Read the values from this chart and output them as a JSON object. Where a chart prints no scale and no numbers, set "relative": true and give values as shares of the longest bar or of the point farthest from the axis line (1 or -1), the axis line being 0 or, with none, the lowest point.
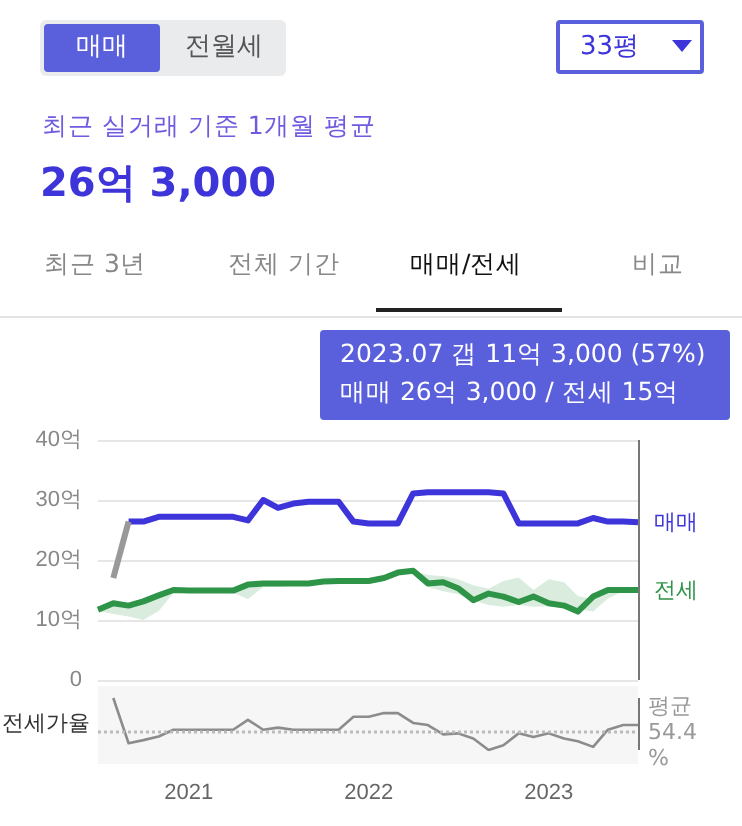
{
  "chart_data": [
    {
      "type": "line",
      "title": "최근 실거래 기준 1개월 평균",
      "subtitle": "26억 3,000",
      "annotations": [
        "매매",
        "전월세",
        "33평",
        "최근 3년",
        "전체 기간",
        "매매/전세",
        "비교",
        "2023.07  갭 11억 3,000 (57%)",
        "매매 26억 3,000 / 전세 15억"
      ],
      "x": [
        "2020-07",
        "2020-08",
        "2020-09",
        "2020-10",
        "2020-11",
        "2020-12",
        "2021-01",
        "2021-02",
        "2021-03",
        "2021-04",
        "2021-05",
        "2021-06",
        "2021-07",
        "2021-08",
        "2021-09",
        "2021-10",
        "2021-11",
        "2021-12",
        "2022-01",
        "2022-02",
        "2022-03",
        "2022-04",
        "2022-05",
        "2022-06",
        "2022-07",
        "2022-08",
        "2022-09",
        "2022-10",
        "2022-11",
        "2022-12",
        "2023-01",
        "2023-02",
        "2023-03",
        "2023-04",
        "2023-05",
        "2023-06",
        "2023-07"
      ],
      "xlim": [
        "2020-07",
        "2023-07"
      ],
      "ylim": [
        0,
        40
      ],
      "yticks": [
        0,
        {
          "value": 10,
          "label": "10억"
        },
        {
          "value": 20,
          "label": "20억"
        },
        {
          "value": 30,
          "label": "30억"
        },
        {
          "value": 40,
          "label": "40억"
        }
      ],
      "grid": "y",
      "tick_labels": "y",
      "series": [
        {
          "name": "매매",
          "color": "#3d35d9",
          "values": [
            null,
            null,
            26.4,
            26.4,
            27.2,
            27.2,
            27.2,
            27.2,
            27.2,
            27.2,
            26.6,
            30,
            28.7,
            29.4,
            29.7,
            29.7,
            29.7,
            26.4,
            26.1,
            26.1,
            26.1,
            31.1,
            31.3,
            31.3,
            31.3,
            31.3,
            31.3,
            31.1,
            26.1,
            26.1,
            26.1,
            26.1,
            26.1,
            27,
            26.4,
            26.4,
            26.3
          ]
        },
        {
          "color": "#999999",
          "values": [
            null,
            17,
            26.4,
            null,
            null,
            null,
            null,
            null,
            null,
            null,
            null,
            null,
            null,
            null,
            null,
            null,
            null,
            null,
            null,
            null,
            null,
            null,
            null,
            null,
            null,
            null,
            null,
            null,
            null,
            null,
            null,
            null,
            null,
            null,
            null,
            null,
            null
          ]
        },
        {
          "name": "전세",
          "color": "#2e9448",
          "values": [
            11.7,
            12.8,
            12.4,
            13.1,
            14.1,
            15,
            14.9,
            14.9,
            14.9,
            14.9,
            15.9,
            16.1,
            16.1,
            16.1,
            16.1,
            16.4,
            16.5,
            16.5,
            16.5,
            17,
            17.9,
            18.2,
            16.1,
            16.3,
            15.3,
            13.3,
            14.4,
            13.9,
            13,
            13.9,
            12.8,
            12.4,
            11.4,
            13.9,
            15,
            15,
            15
          ],
          "lower": [
            11.5,
            11,
            10.6,
            10,
            11.5,
            14.5,
            14.5,
            14.5,
            14.5,
            14.5,
            13.5,
            15.5,
            15.5,
            15.8,
            16,
            16.2,
            16.3,
            16.3,
            16.4,
            16.8,
            17.5,
            17.8,
            15.5,
            14.8,
            14.3,
            13.3,
            12.5,
            12.2,
            12.5,
            12.2,
            12.3,
            12.1,
            11.8,
            11.4,
            13.6,
            14.8,
            15
          ],
          "upper": [
            11.7,
            12.8,
            12.6,
            13.1,
            14.1,
            15,
            14.9,
            14.9,
            14.9,
            14.9,
            16.2,
            16.1,
            16.1,
            16.1,
            16.1,
            16.4,
            16.5,
            16.5,
            16.5,
            17,
            17.9,
            18.2,
            17.5,
            17.3,
            16.8,
            15.8,
            15.2,
            16.5,
            17.1,
            15,
            16.8,
            16.3,
            14,
            13.4,
            14.6,
            15.2,
            15
          ]
        }
      ],
      "ref_lines": [
        {
          "axis": "x",
          "value": "2023-07",
          "color": "#777777"
        }
      ]
    },
    {
      "type": "line",
      "ylabel": "전세가율",
      "relative": true,
      "x": [
        "2020-08",
        "2020-09",
        "2020-10",
        "2020-11",
        "2020-12",
        "2021-01",
        "2021-02",
        "2021-03",
        "2021-04",
        "2021-05",
        "2021-06",
        "2021-07",
        "2021-08",
        "2021-09",
        "2021-10",
        "2021-11",
        "2021-12",
        "2022-01",
        "2022-02",
        "2022-03",
        "2022-04",
        "2022-05",
        "2022-06",
        "2022-07",
        "2022-08",
        "2022-09",
        "2022-10",
        "2022-11",
        "2022-12",
        "2023-01",
        "2023-02",
        "2023-03",
        "2023-04",
        "2023-05",
        "2023-06",
        "2023-07"
      ],
      "xlim": [
        "2020-07",
        "2023-07"
      ],
      "xticks": [
        {
          "value": "2021-01",
          "label": "2021"
        },
        {
          "value": "2022-01",
          "label": "2022"
        },
        {
          "value": "2023-01",
          "label": "2023"
        }
      ],
      "tick_labels": "x",
      "series": [
        {
          "color": "#8c8c8c",
          "values": [
            1,
            0.13,
            0.19,
            0.26,
            0.39,
            0.39,
            0.39,
            0.39,
            0.39,
            0.58,
            0.39,
            0.43,
            0.39,
            0.39,
            0.39,
            0.39,
            0.64,
            0.64,
            0.71,
            0.71,
            0.52,
            0.48,
            0.3,
            0.32,
            0.22,
            0,
            0.09,
            0.32,
            0.25,
            0.32,
            0.22,
            0.17,
            0.06,
            0.39,
            0.48,
            0.48
          ]
        }
      ],
      "ref_lines": [
        {
          "axis": "y",
          "value": 0.35,
          "label": "평균 54.4%",
          "color": "#bbbbbb",
          "line_style": "dotted"
        },
        {
          "axis": "x",
          "value": "2023-07",
          "color": "#777777"
        }
      ]
    }
  ]
}
